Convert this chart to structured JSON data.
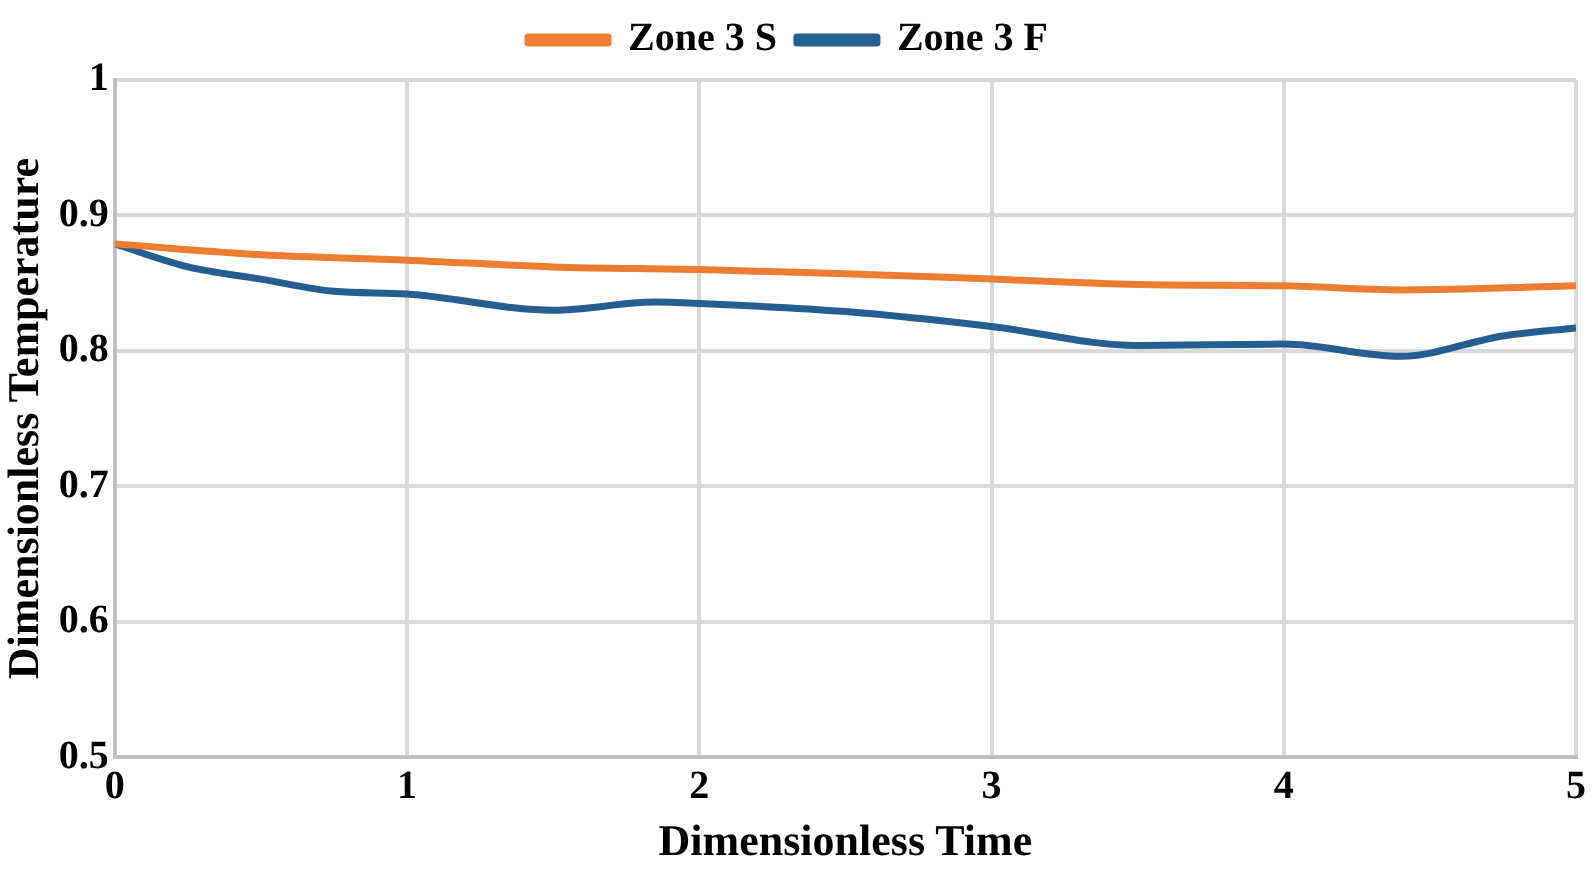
{
  "chart_data": {
    "type": "line",
    "xlabel": "Dimensionless Time",
    "ylabel": "Dimensionless Temperature",
    "xlim": [
      0,
      5
    ],
    "xticks": [
      0,
      1,
      2,
      3,
      4,
      5
    ],
    "ylim": [
      0.5,
      1
    ],
    "yticks": [
      0.5,
      0.6,
      0.7,
      0.8,
      0.9,
      {
        "value": 1,
        "label": "1"
      }
    ],
    "grid": true,
    "legend": "top",
    "marker": "none",
    "series": [
      {
        "name": "Zone 3 S",
        "color": "#ed7d31",
        "x": [
          0,
          0.5,
          1,
          1.5,
          2,
          2.5,
          3,
          3.5,
          4,
          4.4,
          5
        ],
        "values": [
          0.879,
          0.871,
          0.867,
          0.862,
          0.86,
          0.857,
          0.853,
          0.849,
          0.848,
          0.845,
          0.848
        ]
      },
      {
        "name": "Zone 3 F",
        "color": "#255e91",
        "x": [
          0,
          0.25,
          0.5,
          0.75,
          1,
          1.5,
          1.85,
          2,
          2.5,
          3,
          3.5,
          4,
          4.4,
          4.75,
          5
        ],
        "values": [
          0.879,
          0.862,
          0.853,
          0.844,
          0.842,
          0.83,
          0.836,
          0.835,
          0.829,
          0.818,
          0.804,
          0.805,
          0.796,
          0.811,
          0.817
        ]
      }
    ]
  }
}
